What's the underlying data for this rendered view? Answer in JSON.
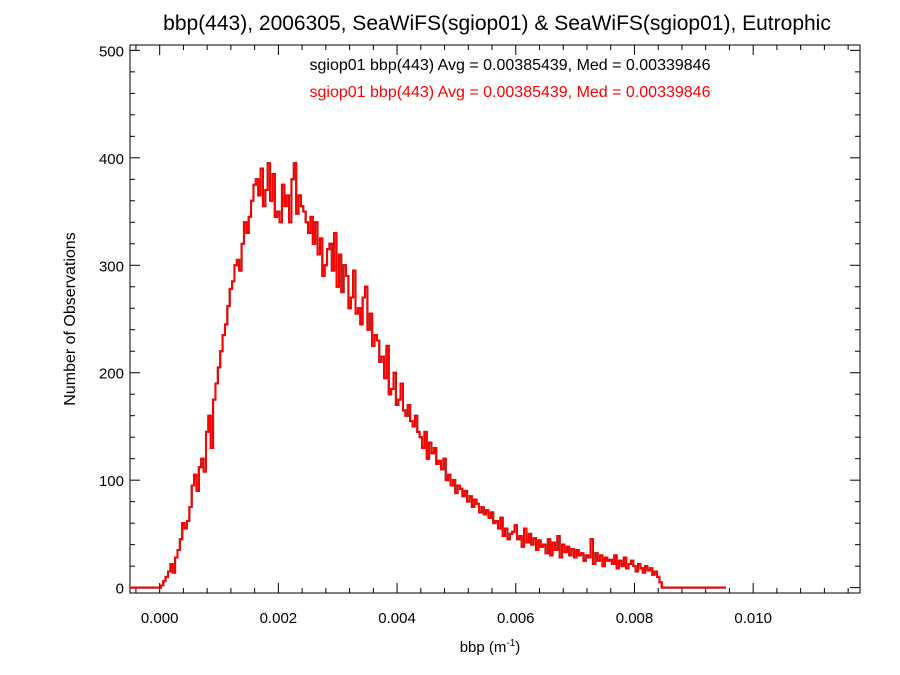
{
  "chart_data": {
    "type": "histogram",
    "title": "bbp(443), 2006305, SeaWiFS(sgiop01) & SeaWiFS(sgiop01), Eutrophic",
    "xlabel": "bbp (m",
    "xlabel_sup": "-1",
    "xlabel_end": ")",
    "ylabel": "Number of Observations",
    "xlim": [
      -0.0005,
      0.0118
    ],
    "ylim": [
      -5,
      505
    ],
    "xticks": [
      0.0,
      0.002,
      0.004,
      0.006,
      0.008,
      0.01
    ],
    "xtick_labels": [
      "0.000",
      "0.002",
      "0.004",
      "0.006",
      "0.008",
      "0.010"
    ],
    "yticks": [
      0,
      100,
      200,
      300,
      400,
      500
    ],
    "ytick_labels": [
      "0",
      "100",
      "200",
      "300",
      "400",
      "500"
    ],
    "grid": false,
    "annotations": [
      {
        "text": "sgiop01 bbp(443) Avg = 0.00385439, Med = 0.00339846",
        "color": "#000000"
      },
      {
        "text": "sgiop01 bbp(443) Avg = 0.00385439, Med = 0.00339846",
        "color": "#ff0000"
      }
    ],
    "series": [
      {
        "color": "#000000"
      },
      {
        "color": "#ff0000"
      }
    ],
    "bin_start": -0.0005,
    "bin_width": 4e-05,
    "counts": [
      0,
      0,
      0,
      0,
      0,
      0,
      0,
      0,
      0,
      0,
      0,
      0,
      0,
      2,
      6,
      10,
      15,
      22,
      14,
      28,
      35,
      45,
      60,
      55,
      62,
      75,
      95,
      105,
      90,
      112,
      120,
      108,
      145,
      160,
      130,
      175,
      190,
      205,
      220,
      235,
      245,
      262,
      278,
      285,
      300,
      305,
      295,
      320,
      340,
      330,
      345,
      360,
      375,
      380,
      365,
      390,
      355,
      370,
      395,
      360,
      385,
      345,
      350,
      340,
      375,
      355,
      365,
      340,
      380,
      395,
      348,
      365,
      355,
      350,
      340,
      330,
      345,
      320,
      340,
      310,
      325,
      290,
      300,
      315,
      320,
      295,
      330,
      280,
      310,
      275,
      300,
      290,
      260,
      270,
      295,
      255,
      260,
      245,
      270,
      280,
      240,
      255,
      225,
      235,
      230,
      210,
      215,
      195,
      225,
      180,
      185,
      200,
      170,
      175,
      190,
      165,
      160,
      170,
      155,
      150,
      160,
      145,
      140,
      130,
      145,
      120,
      135,
      125,
      130,
      115,
      118,
      110,
      120,
      100,
      105,
      95,
      100,
      88,
      95,
      92,
      85,
      90,
      80,
      85,
      75,
      82,
      78,
      70,
      75,
      68,
      72,
      65,
      70,
      60,
      62,
      55,
      65,
      48,
      55,
      45,
      50,
      52,
      58,
      45,
      48,
      38,
      55,
      42,
      50,
      40,
      46,
      35,
      44,
      38,
      40,
      32,
      45,
      30,
      42,
      35,
      48,
      28,
      40,
      33,
      38,
      30,
      36,
      28,
      35,
      30,
      32,
      25,
      30,
      28,
      45,
      22,
      32,
      25,
      30,
      20,
      28,
      25,
      26,
      22,
      30,
      18,
      25,
      20,
      28,
      18,
      22,
      25,
      20,
      15,
      22,
      18,
      14,
      20,
      16,
      18,
      12,
      15,
      10,
      5,
      0,
      0,
      0,
      0,
      0,
      0,
      0,
      0,
      0,
      0,
      0,
      0,
      0,
      0,
      0,
      0,
      0,
      0,
      0,
      0,
      0,
      0,
      0,
      0,
      0,
      0,
      0
    ]
  }
}
